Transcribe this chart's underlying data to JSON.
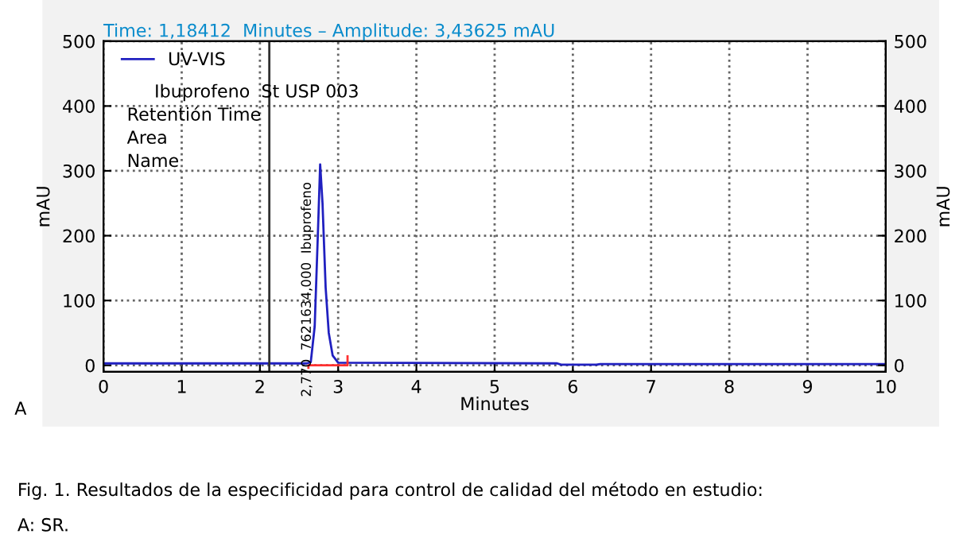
{
  "chart_data": {
    "type": "line",
    "title": "Time: 1,18412  Minutes – Amplitude: 3,43625 mAU",
    "xlabel": "Minutes",
    "ylabel": "mAU",
    "y2label": "mAU",
    "series": [
      {
        "name": "UV-VIS",
        "color": "#2020c0",
        "x": [
          0,
          2.6,
          2.65,
          2.7,
          2.74,
          2.77,
          2.8,
          2.84,
          2.88,
          2.93,
          3.0,
          5.8,
          5.85,
          6.3,
          6.35,
          10
        ],
        "values": [
          3,
          3,
          5,
          60,
          200,
          310,
          250,
          120,
          50,
          15,
          4,
          3,
          1,
          1,
          2,
          2
        ]
      },
      {
        "color": "#ff3030",
        "x": [
          2.62,
          2.62,
          3.12,
          3.12
        ],
        "values": [
          -4,
          0,
          0,
          14
        ]
      }
    ],
    "xlim": [
      0,
      10
    ],
    "ylim": [
      -10,
      500
    ],
    "y2lim": [
      -10,
      500
    ],
    "xticks": [
      0,
      1,
      2,
      3,
      4,
      5,
      6,
      7,
      8,
      9,
      10
    ],
    "yticks": [
      0,
      100,
      200,
      300,
      400,
      500
    ],
    "y2ticks": [
      0,
      100,
      200,
      300,
      400,
      500
    ],
    "ref_lines": [
      {
        "axis": "x",
        "value": 2.12,
        "color": "#303030"
      }
    ],
    "grid": true,
    "legend": "top left",
    "line_style": "solid",
    "marker": "none",
    "annotations": [
      {
        "text": "2,770  7621634,000  Ibuprofeno",
        "x": 2.77,
        "y": 310
      },
      "Ibuprofeno  St USP 003",
      "Retentión Time",
      "Area",
      "Name",
      "A",
      "Fig. 1. Resultados de la especificidad para control de calidad del método en estudio:",
      "A: SR."
    ]
  }
}
